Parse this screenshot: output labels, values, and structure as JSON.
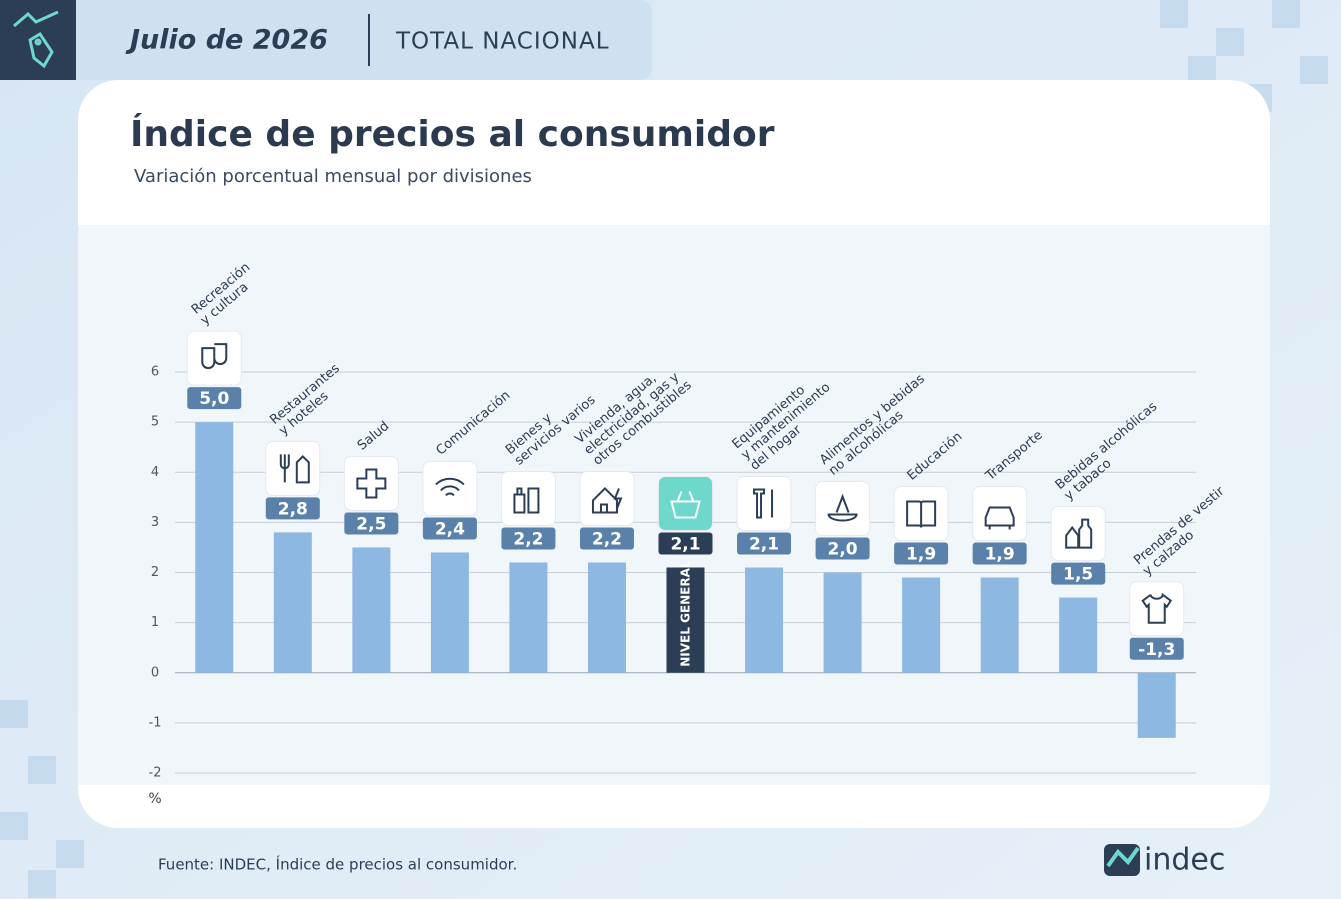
{
  "header": {
    "date": "Julio de 2026",
    "scope": "TOTAL NACIONAL"
  },
  "footer": {
    "source": "Fuente: INDEC, Índice de precios al consumidor.",
    "logo": "indec"
  },
  "chart_data": {
    "type": "bar",
    "title": "Índice de precios al consumidor",
    "subtitle": "Variación porcentual mensual por divisiones",
    "y_label": "%",
    "categories": [
      [
        "Recreación",
        "y cultura"
      ],
      [
        "Restaurantes",
        "y hoteles"
      ],
      [
        "Salud"
      ],
      [
        "Comunicación"
      ],
      [
        "Bienes y",
        "servicios varios"
      ],
      [
        "Vivienda, agua,",
        "electricidad, gas y",
        "otros combustibles"
      ],
      [
        "NIVEL GENERAL"
      ],
      [
        "Equipamiento",
        "y mantenimiento",
        "del hogar"
      ],
      [
        "Alimentos y bebidas",
        "no alcohólicas"
      ],
      [
        "Educación"
      ],
      [
        "Transporte"
      ],
      [
        "Bebidas alcohólicas",
        "y tabaco"
      ],
      [
        "Prendas de vestir",
        "y calzado"
      ]
    ],
    "values": [
      5.0,
      2.8,
      2.5,
      2.4,
      2.2,
      2.2,
      2.1,
      2.1,
      2.0,
      1.9,
      1.9,
      1.5,
      -1.3
    ],
    "value_labels": [
      "5,0",
      "2,8",
      "2,5",
      "2,4",
      "2,2",
      "2,2",
      "2,1",
      "2,1",
      "2,0",
      "1,9",
      "1,9",
      "1,5",
      "-1,3"
    ],
    "color": "#8db8e2",
    "highlight": {
      "index": 6,
      "color": "#2c3e55"
    },
    "ylim": [
      -2,
      6
    ],
    "yticks": [
      -2,
      -1,
      0,
      1,
      2,
      3,
      4,
      5,
      6
    ],
    "grid": true
  }
}
